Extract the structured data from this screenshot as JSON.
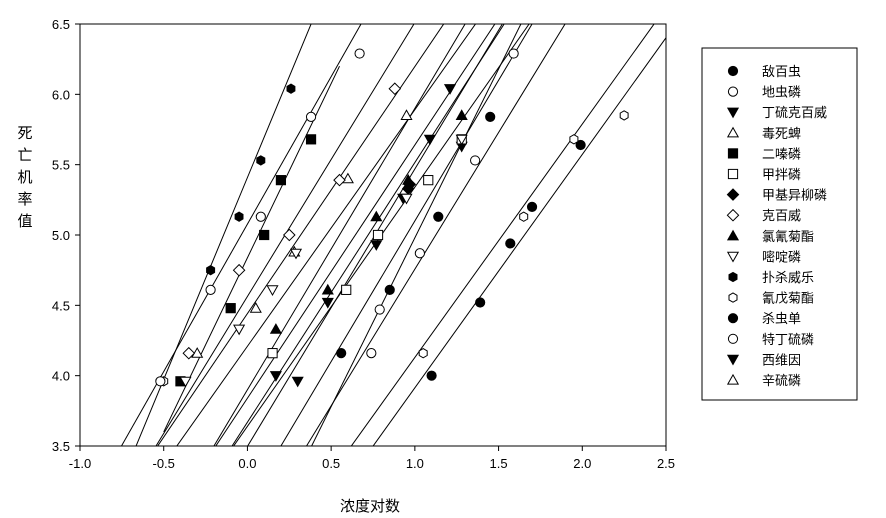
{
  "chart_data": {
    "type": "scatter",
    "title": "",
    "xlabel": "浓度对数",
    "ylabel": "死亡机率值",
    "xlim": [
      -1.0,
      2.5
    ],
    "ylim": [
      3.5,
      6.5
    ],
    "xticks": [
      "-1.0",
      "-0.5",
      "0.0",
      "0.5",
      "1.0",
      "1.5",
      "2.0",
      "2.5"
    ],
    "yticks": [
      "3.5",
      "4.0",
      "4.5",
      "5.0",
      "5.5",
      "6.0",
      "6.5"
    ],
    "legend_position": "right",
    "series": [
      {
        "name": "敌百虫",
        "marker": "filled-circle",
        "points": [
          [
            1.1,
            4.0
          ],
          [
            1.39,
            4.52
          ],
          [
            1.57,
            4.94
          ],
          [
            1.7,
            5.2
          ],
          [
            1.99,
            5.64
          ]
        ],
        "line": [
          [
            0.6,
            3.25
          ],
          [
            2.8,
            6.9
          ]
        ]
      },
      {
        "name": "地虫磷",
        "marker": "open-circle",
        "points": [
          [
            0.74,
            4.16
          ],
          [
            0.79,
            4.47
          ],
          [
            1.03,
            4.87
          ],
          [
            1.36,
            5.53
          ],
          [
            1.59,
            6.29
          ]
        ],
        "line": [
          [
            0.3,
            3.3
          ],
          [
            1.8,
            6.9
          ]
        ]
      },
      {
        "name": "丁硫克百威",
        "marker": "filled-triangle-down",
        "points": [
          [
            0.17,
            4.0
          ],
          [
            0.3,
            3.96
          ],
          [
            0.48,
            4.52
          ],
          [
            0.77,
            4.93
          ],
          [
            0.93,
            5.26
          ],
          [
            1.09,
            5.68
          ],
          [
            1.21,
            6.04
          ],
          [
            1.28,
            5.63
          ]
        ],
        "line": [
          [
            -0.1,
            3.3
          ],
          [
            1.7,
            6.85
          ]
        ]
      },
      {
        "name": "毒死蜱",
        "marker": "open-triangle",
        "points": [
          [
            -0.3,
            4.16
          ],
          [
            0.05,
            4.48
          ],
          [
            0.28,
            4.88
          ],
          [
            0.6,
            5.4
          ],
          [
            0.95,
            5.85
          ]
        ],
        "line": [
          [
            -0.6,
            3.2
          ],
          [
            1.6,
            6.9
          ]
        ]
      },
      {
        "name": "二嗪磷",
        "marker": "filled-square",
        "points": [
          [
            -0.4,
            3.96
          ],
          [
            -0.1,
            4.48
          ],
          [
            0.1,
            5.0
          ],
          [
            0.2,
            5.39
          ],
          [
            0.38,
            5.68
          ]
        ],
        "line": [
          [
            -0.5,
            3.6
          ],
          [
            0.55,
            6.2
          ]
        ]
      },
      {
        "name": "甲拌磷",
        "marker": "open-square",
        "points": [
          [
            0.15,
            4.16
          ],
          [
            0.59,
            4.61
          ],
          [
            0.78,
            5.0
          ],
          [
            1.08,
            5.39
          ],
          [
            1.28,
            5.68
          ]
        ],
        "line": [
          [
            -0.2,
            3.3
          ],
          [
            1.8,
            6.7
          ]
        ]
      },
      {
        "name": "甲基异柳磷",
        "marker": "filled-diamond",
        "points": [
          [
            0.97,
            5.36
          ],
          [
            0.96,
            5.33
          ]
        ],
        "line": [
          [
            0.25,
            3.3
          ],
          [
            2.0,
            6.7
          ]
        ]
      },
      {
        "name": "克百威",
        "marker": "open-diamond",
        "points": [
          [
            -0.35,
            4.16
          ],
          [
            -0.05,
            4.75
          ],
          [
            0.25,
            5.0
          ],
          [
            0.55,
            5.39
          ],
          [
            0.88,
            6.04
          ]
        ],
        "line": [
          [
            -0.7,
            3.2
          ],
          [
            1.2,
            6.9
          ]
        ]
      },
      {
        "name": "氯氰菊酯",
        "marker": "filled-triangle",
        "points": [
          [
            0.17,
            4.33
          ],
          [
            0.48,
            4.61
          ],
          [
            0.77,
            5.13
          ],
          [
            0.96,
            5.39
          ],
          [
            1.28,
            5.85
          ]
        ],
        "line": [
          [
            -0.3,
            3.3
          ],
          [
            1.7,
            6.9
          ]
        ]
      },
      {
        "name": "嘧啶磷",
        "marker": "open-triangle-down",
        "points": [
          [
            -0.37,
            3.96
          ],
          [
            -0.05,
            4.33
          ],
          [
            0.15,
            4.61
          ],
          [
            0.29,
            4.87
          ],
          [
            0.95,
            5.26
          ],
          [
            1.28,
            5.68
          ]
        ],
        "line": [
          [
            -0.65,
            3.3
          ],
          [
            1.4,
            6.9
          ]
        ]
      },
      {
        "name": "扑杀威乐",
        "marker": "filled-hexagon",
        "points": [
          [
            -0.52,
            3.96
          ],
          [
            -0.22,
            4.75
          ],
          [
            -0.05,
            5.13
          ],
          [
            0.08,
            5.53
          ],
          [
            0.26,
            6.04
          ]
        ],
        "line": [
          [
            -0.7,
            3.4
          ],
          [
            0.45,
            6.7
          ]
        ]
      },
      {
        "name": "氰戊菊酯",
        "marker": "open-hexagon",
        "points": [
          [
            -0.5,
            3.96
          ],
          [
            1.05,
            4.16
          ],
          [
            1.65,
            5.13
          ],
          [
            1.95,
            5.68
          ],
          [
            2.25,
            5.85
          ]
        ],
        "line": [
          [
            0.5,
            3.3
          ],
          [
            2.7,
            6.95
          ]
        ]
      },
      {
        "name": "杀虫单",
        "marker": "filled-circle",
        "points": [
          [
            0.56,
            4.16
          ],
          [
            0.85,
            4.61
          ],
          [
            1.14,
            5.13
          ],
          [
            1.45,
            5.84
          ]
        ],
        "line": [
          [
            0.1,
            3.3
          ],
          [
            1.9,
            6.9
          ]
        ]
      },
      {
        "name": "特丁硫磷",
        "marker": "open-circle",
        "points": [
          [
            -0.52,
            3.96
          ],
          [
            -0.22,
            4.61
          ],
          [
            0.08,
            5.13
          ],
          [
            0.38,
            5.84
          ],
          [
            0.67,
            6.29
          ]
        ],
        "line": [
          [
            -0.8,
            3.4
          ],
          [
            0.75,
            6.65
          ]
        ]
      },
      {
        "name": "西维因",
        "marker": "filled-triangle-down",
        "points": [],
        "line": [
          [
            -0.3,
            3.3
          ],
          [
            1.5,
            6.9
          ]
        ]
      },
      {
        "name": "辛硫磷",
        "marker": "open-triangle",
        "points": [],
        "line": [
          [
            -0.2,
            3.3
          ],
          [
            1.75,
            6.9
          ]
        ]
      }
    ]
  }
}
